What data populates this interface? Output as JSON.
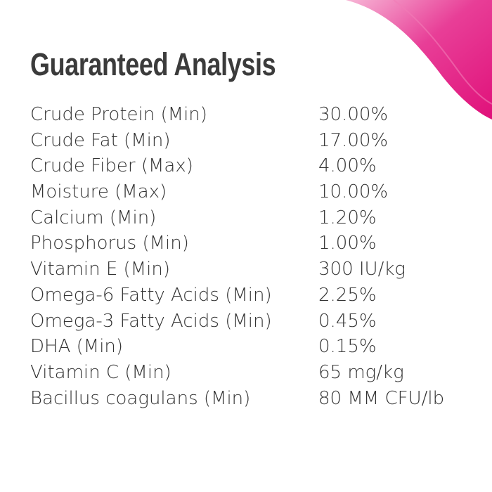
{
  "title": "Guaranteed Analysis",
  "table": {
    "rows": [
      [
        "Crude Protein (Min)",
        "30.00%"
      ],
      [
        "Crude Fat (Min)",
        "17.00%"
      ],
      [
        "Crude Fiber (Max)",
        "4.00%"
      ],
      [
        "Moisture (Max)",
        "10.00%"
      ],
      [
        "Calcium (Min)",
        "1.20%"
      ],
      [
        "Phosphorus (Min)",
        "1.00%"
      ],
      [
        "Vitamin E (Min)",
        "300 IU/kg"
      ],
      [
        "Omega-6 Fatty Acids (Min)",
        "2.25%"
      ],
      [
        "Omega-3 Fatty Acids (Min)",
        "0.45%"
      ],
      [
        "DHA (Min)",
        "0.15%"
      ],
      [
        "Vitamin C (Min)",
        "65 mg/kg"
      ],
      [
        "Bacillus coagulans (Min)",
        "80 MM CFU/lb"
      ]
    ]
  }
}
